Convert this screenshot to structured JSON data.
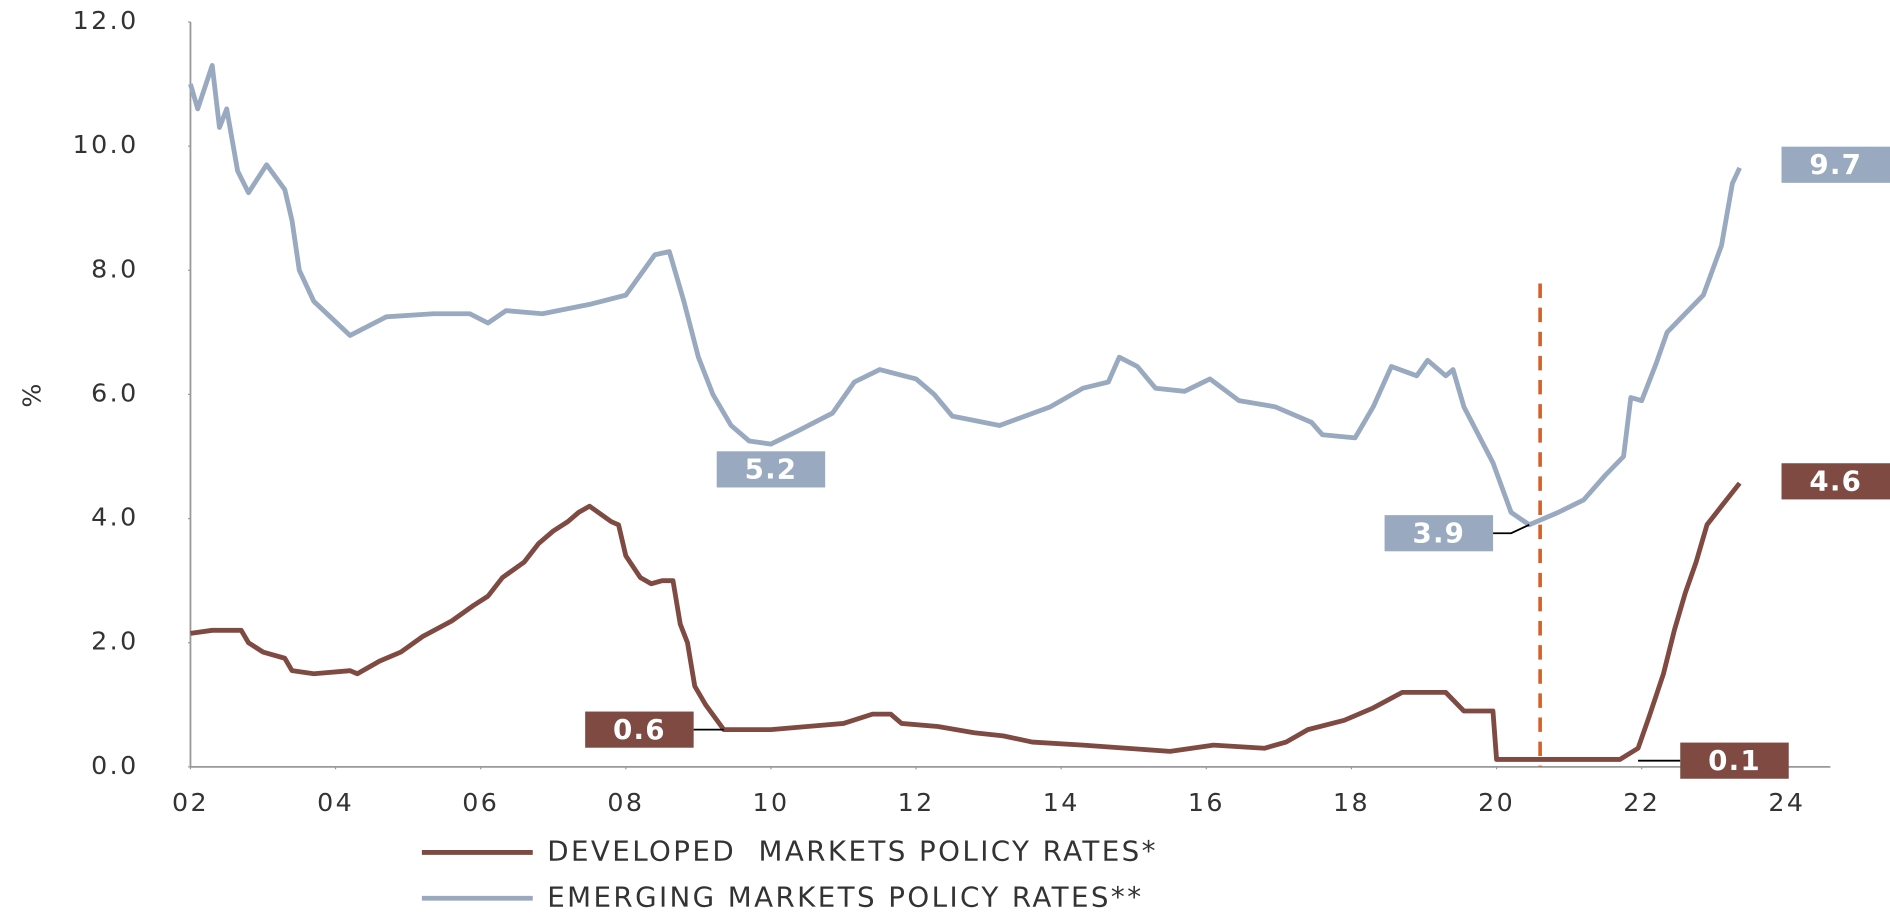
{
  "chart_data": {
    "type": "line",
    "ylabel": "%",
    "xlim": [
      2002,
      2024.6
    ],
    "ylim": [
      0,
      12
    ],
    "xticks": [
      {
        "value": 2002,
        "label": "02"
      },
      {
        "value": 2004,
        "label": "04"
      },
      {
        "value": 2006,
        "label": "06"
      },
      {
        "value": 2008,
        "label": "08"
      },
      {
        "value": 2010,
        "label": "10"
      },
      {
        "value": 2012,
        "label": "12"
      },
      {
        "value": 2014,
        "label": "14"
      },
      {
        "value": 2016,
        "label": "16"
      },
      {
        "value": 2018,
        "label": "18"
      },
      {
        "value": 2020,
        "label": "20"
      },
      {
        "value": 2022,
        "label": "22"
      },
      {
        "value": 2024,
        "label": "24"
      }
    ],
    "yticks": [
      {
        "value": 0,
        "label": "0.0"
      },
      {
        "value": 2,
        "label": "2.0"
      },
      {
        "value": 4,
        "label": "4.0"
      },
      {
        "value": 6,
        "label": "6.0"
      },
      {
        "value": 8,
        "label": "8.0"
      },
      {
        "value": 10,
        "label": "10.0"
      },
      {
        "value": 12,
        "label": "12.0"
      }
    ],
    "vline": {
      "x": 2020.6,
      "color": "#d2622a"
    },
    "series": [
      {
        "name": "DEVELOPED  MARKETS POLICY RATES*",
        "color": "#7e4a42",
        "x": [
          2002,
          2002.3,
          2002.7,
          2002.8,
          2003.0,
          2003.3,
          2003.4,
          2003.7,
          2004.2,
          2004.3,
          2004.6,
          2004.9,
          2005.2,
          2005.6,
          2005.9,
          2006.1,
          2006.3,
          2006.6,
          2006.8,
          2007.0,
          2007.2,
          2007.35,
          2007.5,
          2007.8,
          2007.9,
          2008.0,
          2008.2,
          2008.35,
          2008.5,
          2008.65,
          2008.75,
          2008.85,
          2008.95,
          2009.1,
          2009.35,
          2010.0,
          2010.5,
          2011.0,
          2011.4,
          2011.65,
          2011.8,
          2012.3,
          2012.8,
          2013.2,
          2013.6,
          2014.3,
          2014.9,
          2015.5,
          2016.1,
          2016.8,
          2017.1,
          2017.4,
          2017.9,
          2018.3,
          2018.7,
          2019.3,
          2019.55,
          2019.95,
          2020.0,
          2021.7,
          2021.95,
          2022.1,
          2022.3,
          2022.45,
          2022.6,
          2022.75,
          2022.9,
          2023.1,
          2023.35
        ],
        "values": [
          2.15,
          2.2,
          2.2,
          2.0,
          1.85,
          1.75,
          1.55,
          1.5,
          1.55,
          1.5,
          1.7,
          1.85,
          2.1,
          2.35,
          2.6,
          2.75,
          3.05,
          3.3,
          3.6,
          3.8,
          3.95,
          4.1,
          4.2,
          3.95,
          3.9,
          3.4,
          3.05,
          2.95,
          3.0,
          3.0,
          2.3,
          2.0,
          1.3,
          1.0,
          0.6,
          0.6,
          0.65,
          0.7,
          0.85,
          0.85,
          0.7,
          0.65,
          0.55,
          0.5,
          0.4,
          0.35,
          0.3,
          0.25,
          0.35,
          0.3,
          0.4,
          0.6,
          0.75,
          0.95,
          1.2,
          1.2,
          0.9,
          0.9,
          0.12,
          0.12,
          0.3,
          0.8,
          1.5,
          2.2,
          2.8,
          3.3,
          3.9,
          4.2,
          4.57
        ],
        "annotations": [
          {
            "x": 2009.35,
            "value": 0.6
          },
          {
            "x": 2021.95,
            "value": 0.1
          },
          {
            "x": 2023.35,
            "value": 4.6
          }
        ]
      },
      {
        "name": "EMERGING MARKETS POLICY RATES**",
        "color": "#98a9c0",
        "x": [
          2002,
          2002.1,
          2002.3,
          2002.4,
          2002.5,
          2002.65,
          2002.8,
          2003.05,
          2003.3,
          2003.4,
          2003.5,
          2003.7,
          2004.2,
          2004.7,
          2005.35,
          2005.85,
          2006.1,
          2006.35,
          2006.85,
          2007.5,
          2008.0,
          2008.4,
          2008.6,
          2008.8,
          2009.0,
          2009.2,
          2009.45,
          2009.7,
          2010.0,
          2010.35,
          2010.85,
          2011.15,
          2011.5,
          2012.0,
          2012.25,
          2012.5,
          2013.15,
          2013.85,
          2014.3,
          2014.65,
          2014.8,
          2015.05,
          2015.3,
          2015.7,
          2016.05,
          2016.45,
          2016.95,
          2017.45,
          2017.6,
          2018.05,
          2018.3,
          2018.55,
          2018.9,
          2019.05,
          2019.3,
          2019.4,
          2019.55,
          2019.95,
          2020.2,
          2020.45,
          2020.85,
          2021.2,
          2021.5,
          2021.75,
          2021.85,
          2022.0,
          2022.2,
          2022.35,
          2022.6,
          2022.85,
          2023.1,
          2023.25,
          2023.35
        ],
        "values": [
          11.0,
          10.6,
          11.3,
          10.3,
          10.6,
          9.6,
          9.25,
          9.7,
          9.3,
          8.8,
          8.0,
          7.5,
          6.95,
          7.25,
          7.3,
          7.3,
          7.15,
          7.35,
          7.3,
          7.45,
          7.6,
          8.25,
          8.3,
          7.5,
          6.6,
          6.0,
          5.5,
          5.25,
          5.2,
          5.4,
          5.7,
          6.2,
          6.4,
          6.25,
          6.0,
          5.65,
          5.5,
          5.8,
          6.1,
          6.2,
          6.6,
          6.45,
          6.1,
          6.05,
          6.25,
          5.9,
          5.8,
          5.55,
          5.35,
          5.3,
          5.8,
          6.45,
          6.3,
          6.55,
          6.3,
          6.4,
          5.8,
          4.9,
          4.1,
          3.9,
          4.1,
          4.3,
          4.7,
          5.0,
          5.95,
          5.9,
          6.5,
          7.0,
          7.3,
          7.6,
          8.4,
          9.4,
          9.65
        ],
        "annotations": [
          {
            "x": 2010.0,
            "value": 5.2
          },
          {
            "x": 2020.45,
            "value": 3.9
          },
          {
            "x": 2023.35,
            "value": 9.7
          }
        ]
      }
    ]
  }
}
